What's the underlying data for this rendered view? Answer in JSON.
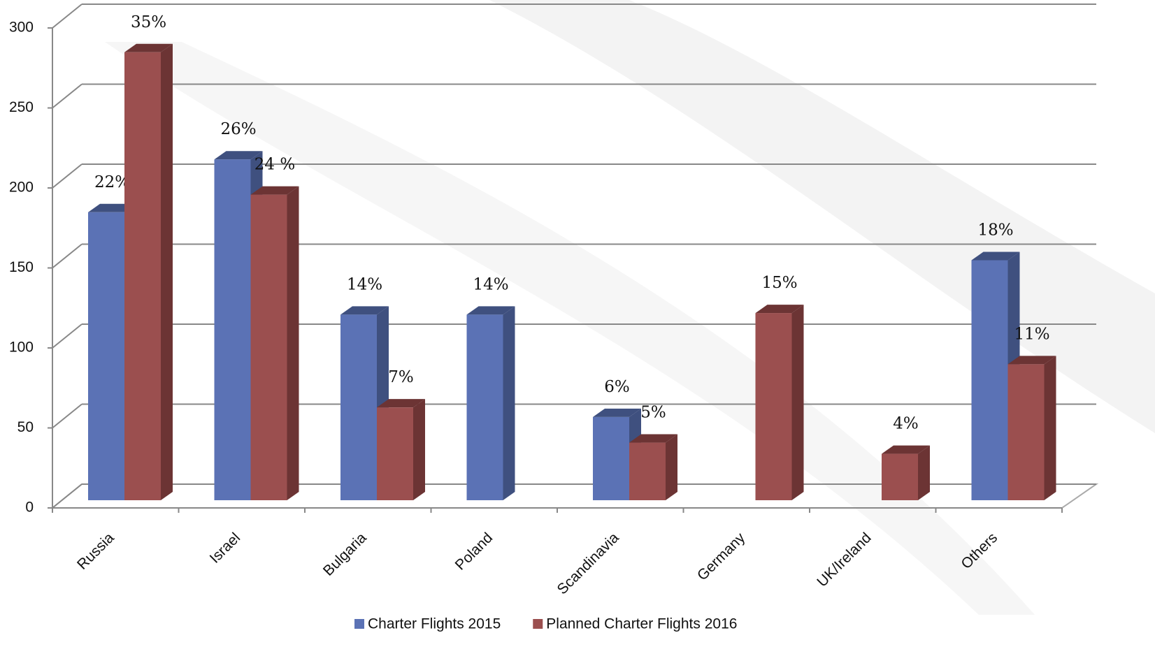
{
  "chart_data": {
    "type": "bar3d",
    "categories": [
      "Russia",
      "Israel",
      "Bulgaria",
      "Poland",
      "Scandinavia",
      "Germany",
      "UK/Ireland",
      "Others"
    ],
    "series": [
      {
        "name": "Charter Flights 2015",
        "color": "#5b72b5",
        "side": "#3f507f",
        "values": [
          180,
          213,
          116,
          116,
          52,
          null,
          null,
          150
        ],
        "share_labels": [
          "22%",
          "26%",
          "14%",
          "14%",
          "6%",
          null,
          null,
          "18%"
        ]
      },
      {
        "name": "Planned Charter Flights 2016",
        "color": "#9b4f4f",
        "side": "#6c3434",
        "values": [
          280,
          191,
          58,
          null,
          36,
          117,
          29,
          85
        ],
        "share_labels": [
          "35%",
          "24 %",
          "7%",
          null,
          "5%",
          "15%",
          "4%",
          "11%"
        ]
      }
    ],
    "ylim": [
      0,
      300
    ],
    "yticks": [
      0,
      50,
      100,
      150,
      200,
      250,
      300
    ],
    "grid": true,
    "legend": "bottom"
  }
}
